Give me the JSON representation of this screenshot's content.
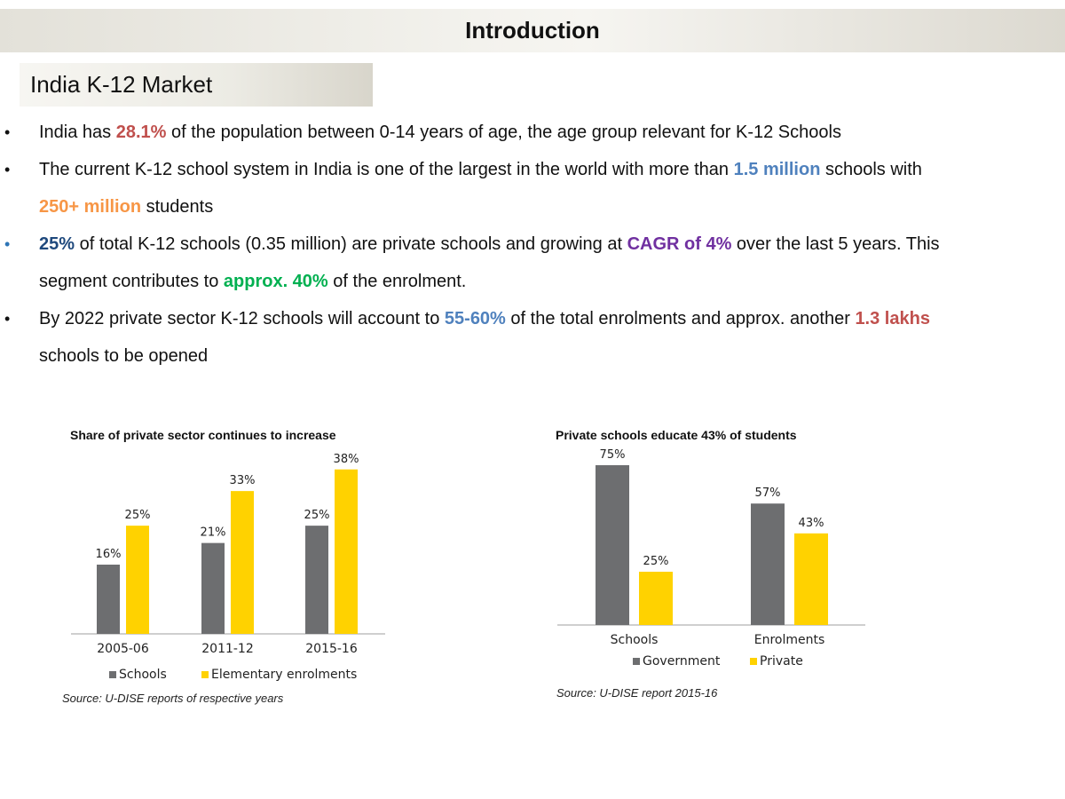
{
  "header": {
    "title": "Introduction"
  },
  "section": {
    "title": "India K-12 Market"
  },
  "bullets": [
    {
      "dot": "•",
      "dot_color": "default",
      "segments": [
        {
          "text": "India has "
        },
        {
          "text": "28.1%",
          "color": "#c0504d",
          "bold": true
        },
        {
          "text": " of the population between 0-14 years of age, the age group relevant for K-12 Schools"
        }
      ]
    },
    {
      "dot": "•",
      "dot_color": "default",
      "segments": [
        {
          "text": "The current K-12 school system in India is one of the largest in the world with more than "
        },
        {
          "text": "1.5 million",
          "color": "#4f81bd",
          "bold": true
        },
        {
          "text": " schools with "
        },
        {
          "text": "250+ million",
          "color": "#f79646",
          "bold": true
        },
        {
          "text": " students"
        }
      ]
    },
    {
      "dot": "•",
      "dot_color": "blue",
      "segments": [
        {
          "text": "25%",
          "color": "#1f497d",
          "bold": true
        },
        {
          "text": " of total K-12 schools (0.35 million) are private schools and growing at "
        },
        {
          "text": "CAGR of 4%",
          "color": "#7030a0",
          "bold": true
        },
        {
          "text": " over the last 5 years. This segment contributes to "
        },
        {
          "text": "approx. 40%",
          "color": "#00b050",
          "bold": true
        },
        {
          "text": " of the enrolment."
        }
      ]
    },
    {
      "dot": "•",
      "dot_color": "default",
      "segments": [
        {
          "text": "By 2022 private sector K-12 schools will account to "
        },
        {
          "text": "55-60%",
          "color": "#4f81bd",
          "bold": true
        },
        {
          "text": " of the total enrolments and approx. another "
        },
        {
          "text": "1.3 lakhs",
          "color": "#c0504d",
          "bold": true
        },
        {
          "text": " schools to be opened"
        }
      ]
    }
  ],
  "colors": {
    "gray_series": "#6d6e70",
    "yellow_series": "#ffd200",
    "axis": "#bfbfbf"
  },
  "chart_data": [
    {
      "type": "bar",
      "title": "Share of private sector continues to increase",
      "categories": [
        "2005-06",
        "2011-12",
        "2015-16"
      ],
      "series": [
        {
          "name": "Schools",
          "values": [
            16,
            21,
            25
          ],
          "labels": [
            "16%",
            "21%",
            "25%"
          ],
          "color": "#6d6e70"
        },
        {
          "name": "Elementary enrolments",
          "values": [
            25,
            33,
            38
          ],
          "labels": [
            "25%",
            "33%",
            "38%"
          ],
          "color": "#ffd200"
        }
      ],
      "ylim": [
        0,
        40
      ],
      "legend": "bottom",
      "source": "Source: U-DISE reports of respective years"
    },
    {
      "type": "bar",
      "title": "Private schools educate 43% of students",
      "categories": [
        "Schools",
        "Enrolments"
      ],
      "series": [
        {
          "name": "Government",
          "values": [
            75,
            57
          ],
          "labels": [
            "75%",
            "57%"
          ],
          "color": "#6d6e70"
        },
        {
          "name": "Private",
          "values": [
            25,
            43
          ],
          "labels": [
            "25%",
            "43%"
          ],
          "color": "#ffd200"
        }
      ],
      "ylim": [
        0,
        75
      ],
      "legend": "bottom",
      "source": "Source: U-DISE report 2015-16"
    }
  ]
}
